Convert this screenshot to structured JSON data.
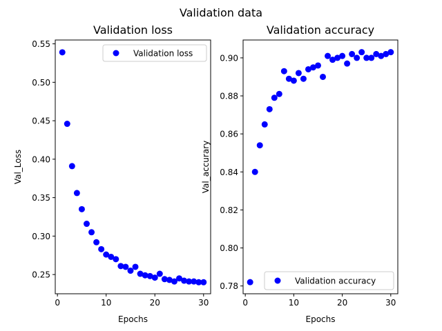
{
  "figure": {
    "suptitle": "Validation data"
  },
  "colors": {
    "marker": "#0000ff",
    "axes": "#000000",
    "background": "#ffffff"
  },
  "chart_data": [
    {
      "type": "scatter",
      "title": "Validation loss",
      "xlabel": "Epochs",
      "ylabel": "Val_Loss",
      "legend": {
        "label": "Validation loss",
        "location": "top-right"
      },
      "xlim": [
        -0.45,
        31.45
      ],
      "ylim": [
        0.225,
        0.555
      ],
      "xticks": [
        0,
        10,
        20,
        30
      ],
      "yticks": [
        0.25,
        0.3,
        0.35,
        0.4,
        0.45,
        0.5,
        0.55
      ],
      "ytick_labels": [
        "0.25",
        "0.30",
        "0.35",
        "0.40",
        "0.45",
        "0.50",
        "0.55"
      ],
      "x": [
        1,
        2,
        3,
        4,
        5,
        6,
        7,
        8,
        9,
        10,
        11,
        12,
        13,
        14,
        15,
        16,
        17,
        18,
        19,
        20,
        21,
        22,
        23,
        24,
        25,
        26,
        27,
        28,
        29,
        30
      ],
      "y": [
        0.539,
        0.446,
        0.391,
        0.356,
        0.335,
        0.316,
        0.305,
        0.292,
        0.283,
        0.276,
        0.273,
        0.27,
        0.261,
        0.26,
        0.255,
        0.26,
        0.251,
        0.249,
        0.248,
        0.246,
        0.251,
        0.244,
        0.243,
        0.241,
        0.245,
        0.242,
        0.241,
        0.241,
        0.24,
        0.24
      ]
    },
    {
      "type": "scatter",
      "title": "Validation accuracy",
      "xlabel": "Epochs",
      "ylabel": "Val_accurary",
      "legend": {
        "label": "Validation accuracy",
        "location": "bottom-right"
      },
      "xlim": [
        -0.45,
        31.45
      ],
      "ylim": [
        0.7759,
        0.9094
      ],
      "xticks": [
        0,
        10,
        20,
        30
      ],
      "yticks": [
        0.78,
        0.8,
        0.82,
        0.84,
        0.86,
        0.88,
        0.9
      ],
      "ytick_labels": [
        "0.78",
        "0.80",
        "0.82",
        "0.84",
        "0.86",
        "0.88",
        "0.90"
      ],
      "x": [
        1,
        2,
        3,
        4,
        5,
        6,
        7,
        8,
        9,
        10,
        11,
        12,
        13,
        14,
        15,
        16,
        17,
        18,
        19,
        20,
        21,
        22,
        23,
        24,
        25,
        26,
        27,
        28,
        29,
        30
      ],
      "y": [
        0.782,
        0.84,
        0.854,
        0.865,
        0.873,
        0.879,
        0.881,
        0.893,
        0.889,
        0.888,
        0.892,
        0.889,
        0.894,
        0.895,
        0.896,
        0.89,
        0.901,
        0.899,
        0.9,
        0.901,
        0.897,
        0.902,
        0.9,
        0.903,
        0.9,
        0.9,
        0.902,
        0.901,
        0.902,
        0.903
      ]
    }
  ]
}
